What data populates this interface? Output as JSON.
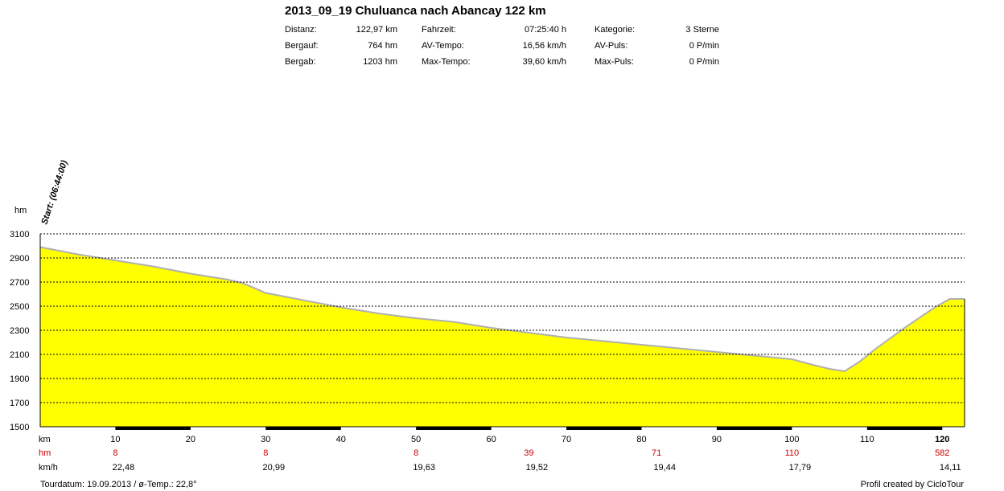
{
  "header": {
    "title": "2013_09_19 Chuluanca nach Abancay 122 km",
    "stats": [
      {
        "label": "Distanz:",
        "value": "122,97 km"
      },
      {
        "label": "Bergauf:",
        "value": "764 hm"
      },
      {
        "label": "Bergab:",
        "value": "1203 hm"
      },
      {
        "label": "Fahrzeit:",
        "value": "07:25:40 h"
      },
      {
        "label": "AV-Tempo:",
        "value": "16,56 km/h"
      },
      {
        "label": "Max-Tempo:",
        "value": "39,60 km/h"
      },
      {
        "label": "Kategorie:",
        "value": "3 Sterne"
      },
      {
        "label": "AV-Puls:",
        "value": "0 P/min"
      },
      {
        "label": "Max-Puls:",
        "value": "0 P/min"
      }
    ]
  },
  "chart_data": {
    "type": "area",
    "ylabel": "hm",
    "xlabel": "km",
    "ylim": [
      1500,
      3100
    ],
    "xlim": [
      0,
      122.97
    ],
    "yticks": [
      1500,
      1700,
      1900,
      2100,
      2300,
      2500,
      2700,
      2900,
      3100
    ],
    "xticks": [
      10,
      20,
      30,
      40,
      50,
      60,
      70,
      80,
      90,
      100,
      110,
      120
    ],
    "grid": "dashed horizontal",
    "start_annotation": "Start: (06:44:00)",
    "fill_color": "#ffff00",
    "line_color": "#b0b0b0",
    "profile": {
      "x": [
        0,
        5,
        10,
        15,
        20,
        25,
        27,
        30,
        35,
        40,
        45,
        50,
        55,
        60,
        65,
        70,
        75,
        80,
        85,
        90,
        95,
        100,
        103,
        105,
        107,
        109,
        111,
        115,
        119,
        121,
        122.97
      ],
      "y": [
        2990,
        2930,
        2880,
        2830,
        2770,
        2720,
        2690,
        2610,
        2550,
        2490,
        2440,
        2400,
        2370,
        2320,
        2280,
        2240,
        2210,
        2180,
        2150,
        2120,
        2090,
        2060,
        2010,
        1980,
        1960,
        2040,
        2140,
        2320,
        2490,
        2560,
        2560
      ]
    },
    "segment_rows": [
      {
        "label": "hm",
        "values": [
          "8",
          "8",
          "8",
          "39",
          "71",
          "110",
          "582"
        ]
      },
      {
        "label": "km/h",
        "values": [
          "22,48",
          "20,99",
          "19,63",
          "19,52",
          "19,44",
          "17,79",
          "14,11"
        ]
      }
    ],
    "segment_positions": [
      10,
      30,
      50,
      65,
      82,
      100,
      120
    ]
  },
  "footer": {
    "left": "Tourdatum: 19.09.2013  /  ø-Temp.: 22,8°",
    "right": "Profil created by CicloTour"
  }
}
